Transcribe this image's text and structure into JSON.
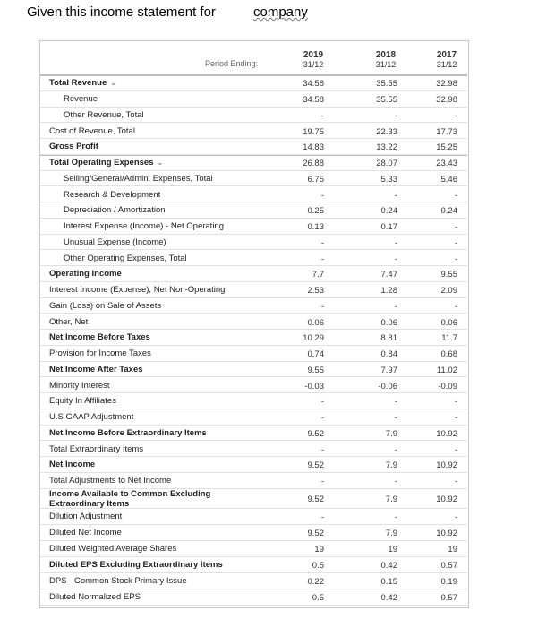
{
  "header": {
    "title": "Given this income statement for",
    "company": "company"
  },
  "table": {
    "period_label": "Period Ending:",
    "columns": [
      {
        "year": "2019",
        "date": "31/12"
      },
      {
        "year": "2018",
        "date": "31/12"
      },
      {
        "year": "2017",
        "date": "31/12"
      }
    ],
    "rows": [
      [
        "Total Revenue",
        "34.58",
        "35.55",
        "32.98"
      ],
      [
        "Revenue",
        "34.58",
        "35.55",
        "32.98"
      ],
      [
        "Other Revenue, Total",
        "-",
        "-",
        "-"
      ],
      [
        "Cost of Revenue, Total",
        "19.75",
        "22.33",
        "17.73"
      ],
      [
        "Gross Profit",
        "14.83",
        "13.22",
        "15.25"
      ],
      [
        "Total Operating Expenses",
        "26.88",
        "28.07",
        "23.43"
      ],
      [
        "Selling/General/Admin. Expenses, Total",
        "6.75",
        "5.33",
        "5.46"
      ],
      [
        "Research & Development",
        "-",
        "-",
        "-"
      ],
      [
        "Depreciation / Amortization",
        "0.25",
        "0.24",
        "0.24"
      ],
      [
        "Interest Expense (Income) - Net Operating",
        "0.13",
        "0.17",
        "-"
      ],
      [
        "Unusual Expense (Income)",
        "-",
        "-",
        "-"
      ],
      [
        "Other Operating Expenses, Total",
        "-",
        "-",
        "-"
      ],
      [
        "Operating Income",
        "7.7",
        "7.47",
        "9.55"
      ],
      [
        "Interest Income (Expense), Net Non-Operating",
        "2.53",
        "1.28",
        "2.09"
      ],
      [
        "Gain (Loss) on Sale of Assets",
        "-",
        "-",
        "-"
      ],
      [
        "Other, Net",
        "0.06",
        "0.06",
        "0.06"
      ],
      [
        "Net Income Before Taxes",
        "10.29",
        "8.81",
        "11.7"
      ],
      [
        "Provision for Income Taxes",
        "0.74",
        "0.84",
        "0.68"
      ],
      [
        "Net Income After Taxes",
        "9.55",
        "7.97",
        "11.02"
      ],
      [
        "Minority Interest",
        "-0.03",
        "-0.06",
        "-0.09"
      ],
      [
        "Equity In Affiliates",
        "-",
        "-",
        "-"
      ],
      [
        "U.S GAAP Adjustment",
        "-",
        "-",
        "-"
      ],
      [
        "Net Income Before Extraordinary Items",
        "9.52",
        "7.9",
        "10.92"
      ],
      [
        "Total Extraordinary Items",
        "-",
        "-",
        "-"
      ],
      [
        "Net Income",
        "9.52",
        "7.9",
        "10.92"
      ],
      [
        "Total Adjustments to Net Income",
        "-",
        "-",
        "-"
      ],
      [
        "Income Available to Common Excluding Extraordinary Items",
        "9.52",
        "7.9",
        "10.92"
      ],
      [
        "Dilution Adjustment",
        "-",
        "-",
        "-"
      ],
      [
        "Diluted Net Income",
        "9.52",
        "7.9",
        "10.92"
      ],
      [
        "Diluted Weighted Average Shares",
        "19",
        "19",
        "19"
      ],
      [
        "Diluted EPS Excluding Extraordinary Items",
        "0.5",
        "0.42",
        "0.57"
      ],
      [
        "DPS - Common Stock Primary Issue",
        "0.22",
        "0.15",
        "0.19"
      ],
      [
        "Diluted Normalized EPS",
        "0.5",
        "0.42",
        "0.57"
      ]
    ]
  }
}
